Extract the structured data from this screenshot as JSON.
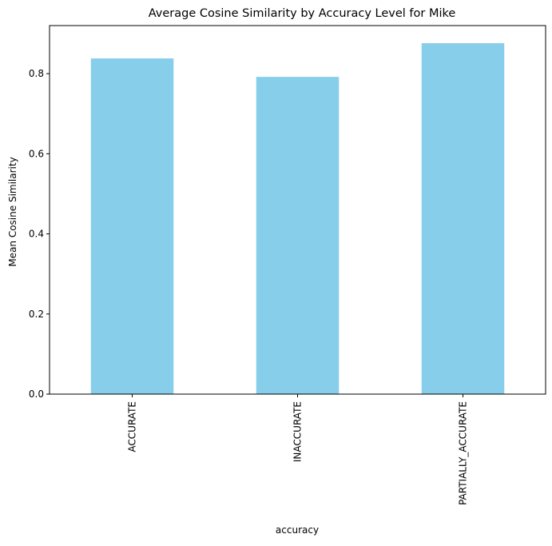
{
  "chart_data": {
    "type": "bar",
    "title": "Average Cosine Similarity by Accuracy Level for Mike",
    "xlabel": "accuracy",
    "ylabel": "Mean Cosine Similarity",
    "categories": [
      "ACCURATE",
      "INACCURATE",
      "PARTIALLY_ACCURATE"
    ],
    "values": [
      0.838,
      0.792,
      0.876
    ],
    "ylim": [
      0,
      0.92
    ],
    "yticks": [
      "0.0",
      "0.2",
      "0.4",
      "0.6",
      "0.8"
    ],
    "grid": false,
    "legend": "none",
    "bar_color": "#87CEEB"
  }
}
